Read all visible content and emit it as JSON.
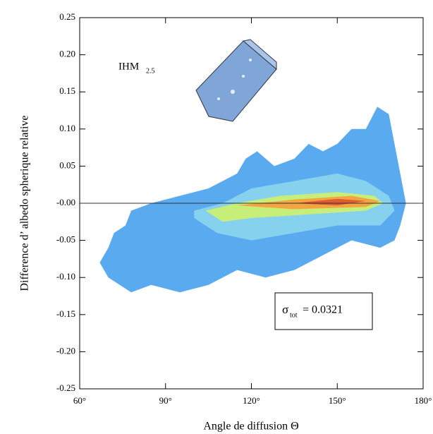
{
  "chart_data": {
    "type": "contour",
    "xlabel": "Angle de diffusion Θ",
    "ylabel": "Difference d’ albedo spherique relative",
    "xlim": [
      60,
      180
    ],
    "xticks": [
      {
        "value": 60,
        "label": "60°"
      },
      {
        "value": 90,
        "label": "90°"
      },
      {
        "value": 120,
        "label": "120°"
      },
      {
        "value": 150,
        "label": "150°"
      },
      {
        "value": 180,
        "label": "180°"
      }
    ],
    "ylim": [
      -0.25,
      0.25
    ],
    "yticks": [
      -0.25,
      {
        "value": -0.2,
        "label": "-0.20"
      },
      -0.15,
      {
        "value": -0.1,
        "label": "-0.10"
      },
      -0.05,
      {
        "value": 0,
        "label": "-0.00"
      },
      0.05,
      {
        "value": 0.1,
        "label": "0.10"
      },
      0.15,
      {
        "value": 0.2,
        "label": "0.20"
      },
      0.25
    ],
    "annotations": {
      "crystal": "IHM",
      "crystal_sub": "2.5",
      "sigma": "σ",
      "sigma_sub": "tot",
      "sigma_value": "= 0.0321"
    },
    "series": [
      {
        "color": "#5aaaf0",
        "x": [
          78,
          85,
          95,
          105,
          115,
          118,
          122,
          128,
          135,
          140,
          145,
          150,
          155,
          160,
          164,
          168,
          170,
          172,
          174,
          172,
          170,
          165,
          155,
          145,
          135,
          125,
          115,
          105,
          95,
          85,
          78,
          70,
          67,
          70,
          72,
          76
        ],
        "y": [
          -0.01,
          0.0,
          0.01,
          0.02,
          0.04,
          0.06,
          0.07,
          0.05,
          0.06,
          0.08,
          0.07,
          0.08,
          0.1,
          0.1,
          0.13,
          0.12,
          0.08,
          0.04,
          0.0,
          -0.03,
          -0.05,
          -0.06,
          -0.05,
          -0.07,
          -0.09,
          -0.1,
          -0.09,
          -0.11,
          -0.12,
          -0.11,
          -0.12,
          -0.1,
          -0.08,
          -0.06,
          -0.04,
          -0.03
        ]
      },
      {
        "color": "#86d2ee",
        "x": [
          100,
          110,
          120,
          135,
          150,
          160,
          168,
          170,
          165,
          150,
          135,
          120,
          108,
          100
        ],
        "y": [
          -0.01,
          0.0,
          0.02,
          0.03,
          0.04,
          0.03,
          0.01,
          -0.01,
          -0.03,
          -0.03,
          -0.04,
          -0.05,
          -0.04,
          -0.02
        ]
      },
      {
        "color": "#c8ee7a",
        "x": [
          104,
          115,
          130,
          150,
          163,
          166,
          160,
          140,
          120,
          110
        ],
        "y": [
          -0.01,
          0.0,
          0.01,
          0.015,
          0.01,
          0.0,
          -0.01,
          -0.015,
          -0.02,
          -0.025
        ]
      },
      {
        "color": "#f2a640",
        "x": [
          115,
          135,
          155,
          165,
          160,
          135
        ],
        "y": [
          -0.003,
          0.005,
          0.01,
          0.003,
          -0.005,
          -0.008
        ]
      },
      {
        "color": "#e05a32",
        "x": [
          135,
          150,
          160,
          150
        ],
        "y": [
          0.0,
          0.006,
          0.003,
          -0.003
        ]
      }
    ]
  }
}
